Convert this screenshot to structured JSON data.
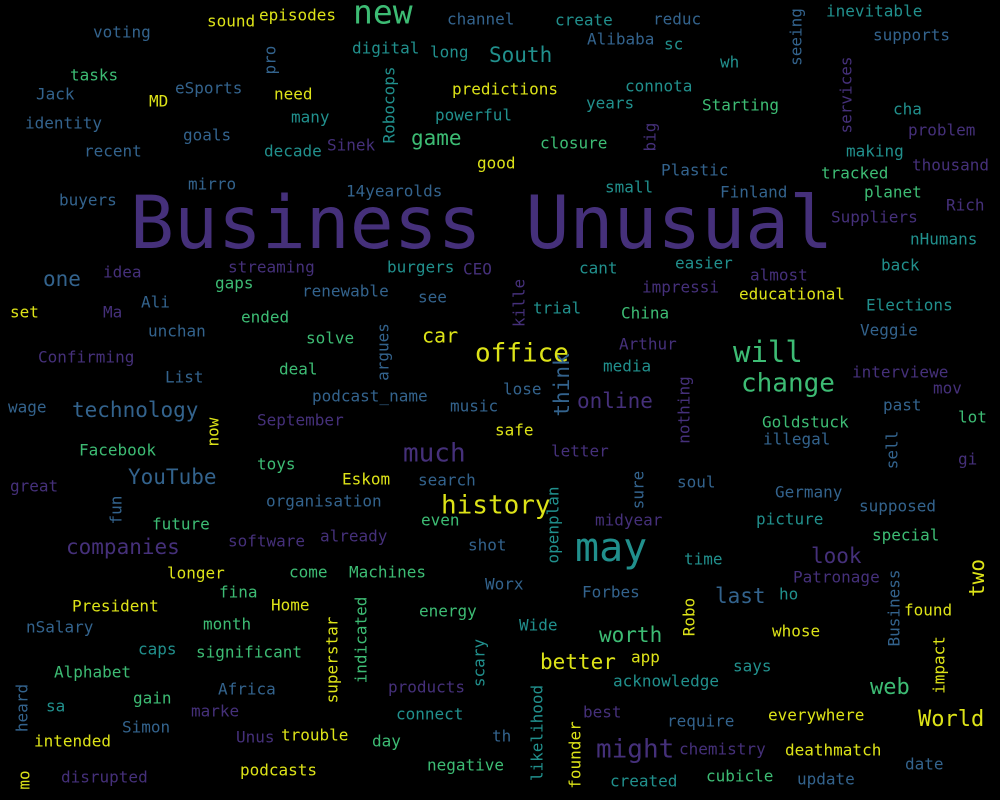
{
  "words": [
    "sound",
    "episodes",
    "new",
    "channel",
    "create",
    "reduc",
    "seeing",
    "inevitable",
    "voting",
    "digital",
    "pro",
    "Robocops",
    "long",
    "South",
    "Alibaba",
    "sc",
    "wh",
    "services",
    "supports",
    "tasks",
    "eSports",
    "MD",
    "need",
    "predictions",
    "connota",
    "Jack",
    "identity",
    "many",
    "powerful",
    "years",
    "Starting",
    "cha",
    "problem",
    "goals",
    "game",
    "big",
    "recent",
    "decade",
    "Sinek",
    "closure",
    "making",
    "thousand",
    "good",
    "Plastic",
    "tracked",
    "mirro",
    "14yearolds",
    "small",
    "Finland",
    "planet",
    "buyers",
    "Rich",
    "Business Unusual",
    "Suppliers",
    "nHumans",
    "one",
    "idea",
    "streaming",
    "burgers",
    "CEO",
    "cant",
    "easier",
    "almost",
    "back",
    "gaps",
    "renewable",
    "see",
    "impressi",
    "educational",
    "Ali",
    "kille",
    "set",
    "Ma",
    "trial",
    "Elections",
    "ended",
    "China",
    "unchan",
    "solve",
    "argues",
    "car",
    "Veggie",
    "Arthur",
    "office",
    "will",
    "Confirming",
    "media",
    "think",
    "deal",
    "List",
    "change",
    "interviewe",
    "lose",
    "mov",
    "nothing",
    "podcast_name",
    "online",
    "music",
    "wage",
    "technology",
    "past",
    "lot",
    "now",
    "September",
    "Goldstuck",
    "safe",
    "illegal",
    "sell",
    "letter",
    "Facebook",
    "much",
    "gi",
    "toys",
    "YouTube",
    "Eskom",
    "search",
    "soul",
    "great",
    "sure",
    "fun",
    "Germany",
    "organisation",
    "history",
    "supposed",
    "openplan",
    "even",
    "picture",
    "future",
    "midyear",
    "already",
    "special",
    "software",
    "shot",
    "companies",
    "may",
    "look",
    "time",
    "two",
    "longer",
    "come",
    "Machines",
    "Worx",
    "Patronage",
    "fina",
    "Forbes",
    "last",
    "ho",
    "Business",
    "President",
    "Home",
    "indicated",
    "superstar",
    "energy",
    "found",
    "nSalary",
    "month",
    "Robo",
    "worth",
    "Wide",
    "whose",
    "scary",
    "impact",
    "caps",
    "significant",
    "app",
    "better",
    "says",
    "Alphabet",
    "acknowledge",
    "web",
    "Africa",
    "products",
    "heard",
    "gain",
    "likelihood",
    "sa",
    "marke",
    "connect",
    "best",
    "everywhere",
    "World",
    "require",
    "Simon",
    "th",
    "Unus",
    "trouble",
    "intended",
    "day",
    "might",
    "chemistry",
    "deathmatch",
    "founder",
    "date",
    "negative",
    "podcasts",
    "update",
    "cubicle",
    "created",
    "disrupted",
    "mo"
  ]
}
